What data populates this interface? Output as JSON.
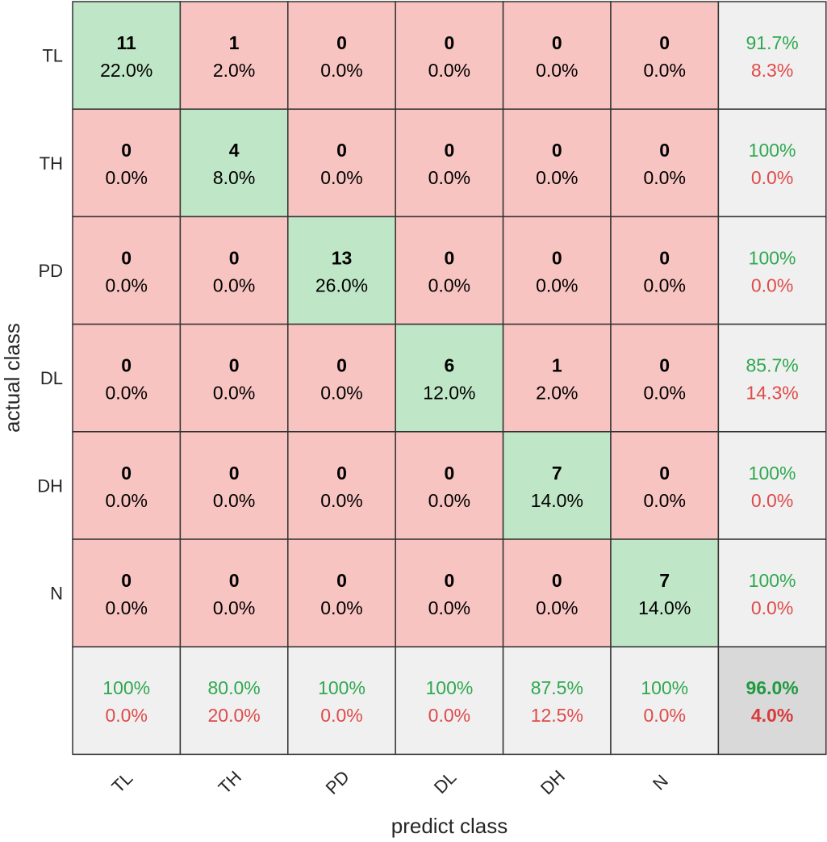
{
  "chart_data": {
    "type": "heatmap",
    "title": "",
    "xlabel": "predict class",
    "ylabel": "actual class",
    "classes": [
      "TL",
      "TH",
      "PD",
      "DL",
      "DH",
      "N"
    ],
    "matrix": [
      [
        11,
        1,
        0,
        0,
        0,
        0
      ],
      [
        0,
        4,
        0,
        0,
        0,
        0
      ],
      [
        0,
        0,
        13,
        0,
        0,
        0
      ],
      [
        0,
        0,
        0,
        6,
        1,
        0
      ],
      [
        0,
        0,
        0,
        0,
        7,
        0
      ],
      [
        0,
        0,
        0,
        0,
        0,
        7
      ]
    ],
    "percentages": [
      [
        "22.0%",
        "2.0%",
        "0.0%",
        "0.0%",
        "0.0%",
        "0.0%"
      ],
      [
        "0.0%",
        "8.0%",
        "0.0%",
        "0.0%",
        "0.0%",
        "0.0%"
      ],
      [
        "0.0%",
        "0.0%",
        "26.0%",
        "0.0%",
        "0.0%",
        "0.0%"
      ],
      [
        "0.0%",
        "0.0%",
        "0.0%",
        "12.0%",
        "2.0%",
        "0.0%"
      ],
      [
        "0.0%",
        "0.0%",
        "0.0%",
        "0.0%",
        "14.0%",
        "0.0%"
      ],
      [
        "0.0%",
        "0.0%",
        "0.0%",
        "0.0%",
        "0.0%",
        "14.0%"
      ]
    ],
    "row_summary": [
      {
        "correct": "91.7%",
        "error": "8.3%"
      },
      {
        "correct": "100%",
        "error": "0.0%"
      },
      {
        "correct": "100%",
        "error": "0.0%"
      },
      {
        "correct": "85.7%",
        "error": "14.3%"
      },
      {
        "correct": "100%",
        "error": "0.0%"
      },
      {
        "correct": "100%",
        "error": "0.0%"
      }
    ],
    "column_summary": [
      {
        "correct": "100%",
        "error": "0.0%"
      },
      {
        "correct": "80.0%",
        "error": "20.0%"
      },
      {
        "correct": "100%",
        "error": "0.0%"
      },
      {
        "correct": "100%",
        "error": "0.0%"
      },
      {
        "correct": "87.5%",
        "error": "12.5%"
      },
      {
        "correct": "100%",
        "error": "0.0%"
      }
    ],
    "overall": {
      "correct": "96.0%",
      "error": "4.0%"
    },
    "colors": {
      "diagonal": "#bfe6c6",
      "offdiagonal": "#f8c4c1",
      "summary": "#f0f0f0",
      "overall": "#d9d9d9",
      "correct_text": "#2fa84f",
      "error_text": "#e04a4a",
      "border": "#333333"
    }
  }
}
